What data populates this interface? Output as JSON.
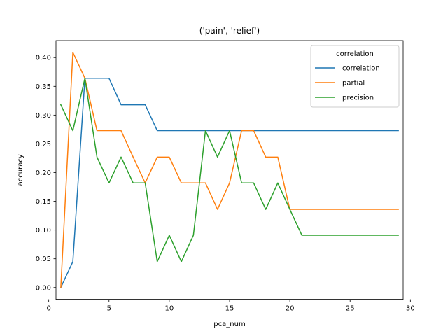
{
  "chart_data": {
    "type": "line",
    "title": "('pain', 'relief')",
    "xlabel": "pca_num",
    "ylabel": "accuracy",
    "xlim": [
      0.6,
      29.4
    ],
    "ylim": [
      -0.0205,
      0.4295
    ],
    "xticks": [
      0,
      5,
      10,
      15,
      20,
      25,
      30
    ],
    "xtick_labels": [
      "0",
      "5",
      "10",
      "15",
      "20",
      "25",
      "30"
    ],
    "yticks": [
      0.0,
      0.05,
      0.1,
      0.15,
      0.2,
      0.25,
      0.3,
      0.35,
      0.4
    ],
    "ytick_labels": [
      "0.00",
      "0.05",
      "0.10",
      "0.15",
      "0.20",
      "0.25",
      "0.30",
      "0.35",
      "0.40"
    ],
    "grid": false,
    "legend": {
      "title": "correlation",
      "placement": "top-right"
    },
    "x": [
      1,
      2,
      3,
      4,
      5,
      6,
      7,
      8,
      9,
      10,
      11,
      12,
      13,
      14,
      15,
      16,
      17,
      18,
      19,
      20,
      21,
      22,
      23,
      24,
      25,
      26,
      27,
      28,
      29
    ],
    "series": [
      {
        "name": "correlation",
        "color": "#1f77b4",
        "values": [
          0.0,
          0.045,
          0.364,
          0.364,
          0.364,
          0.318,
          0.318,
          0.318,
          0.273,
          0.273,
          0.273,
          0.273,
          0.273,
          0.273,
          0.273,
          0.273,
          0.273,
          0.273,
          0.273,
          0.273,
          0.273,
          0.273,
          0.273,
          0.273,
          0.273,
          0.273,
          0.273,
          0.273,
          0.273
        ]
      },
      {
        "name": "partial",
        "color": "#ff7f0e",
        "values": [
          0.0,
          0.409,
          0.364,
          0.273,
          0.273,
          0.273,
          0.227,
          0.182,
          0.227,
          0.227,
          0.182,
          0.182,
          0.182,
          0.136,
          0.182,
          0.273,
          0.273,
          0.227,
          0.227,
          0.136,
          0.136,
          0.136,
          0.136,
          0.136,
          0.136,
          0.136,
          0.136,
          0.136,
          0.136
        ]
      },
      {
        "name": "precision",
        "color": "#2ca02c",
        "values": [
          0.318,
          0.273,
          0.364,
          0.227,
          0.182,
          0.227,
          0.182,
          0.182,
          0.045,
          0.091,
          0.045,
          0.091,
          0.273,
          0.227,
          0.273,
          0.182,
          0.182,
          0.136,
          0.182,
          0.136,
          0.091,
          0.091,
          0.091,
          0.091,
          0.091,
          0.091,
          0.091,
          0.091,
          0.091
        ]
      }
    ]
  }
}
